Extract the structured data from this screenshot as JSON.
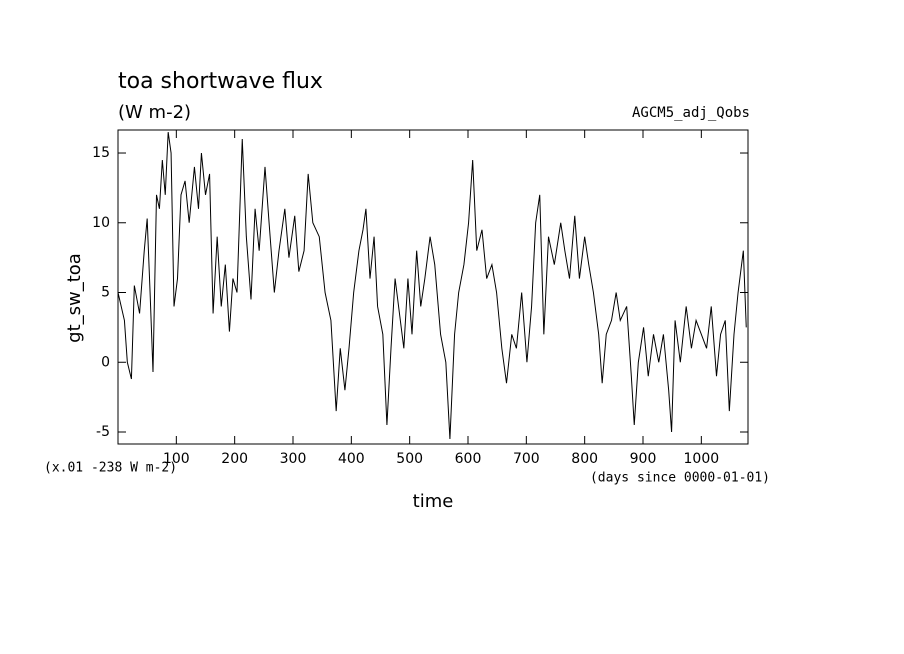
{
  "chart_data": {
    "type": "line",
    "title": "toa shortwave flux",
    "subtitle": "(W m-2)",
    "annotation": "AGCM5_adj_Qobs",
    "y_label": "gt_sw_toa",
    "x_label": "time",
    "x_unit": "(days since 0000-01-01)",
    "y_offset_note": "(x.01 -238 W m-2)",
    "x": [
      0,
      11,
      16,
      23,
      28,
      37,
      45,
      50,
      55,
      60,
      66,
      71,
      76,
      81,
      86,
      91,
      96,
      102,
      108,
      115,
      122,
      131,
      138,
      143,
      150,
      157,
      163,
      170,
      177,
      184,
      191,
      197,
      204,
      213,
      220,
      228,
      235,
      242,
      252,
      259,
      268,
      276,
      286,
      293,
      303,
      310,
      319,
      326,
      334,
      345,
      355,
      365,
      374,
      381,
      389,
      396,
      404,
      413,
      420,
      425,
      432,
      439,
      445,
      454,
      461,
      468,
      475,
      481,
      490,
      497,
      504,
      512,
      519,
      526,
      535,
      543,
      553,
      562,
      569,
      577,
      584,
      593,
      601,
      608,
      615,
      624,
      632,
      641,
      649,
      658,
      666,
      675,
      683,
      692,
      701,
      709,
      716,
      723,
      730,
      738,
      748,
      759,
      766,
      774,
      783,
      791,
      800,
      807,
      815,
      824,
      830,
      837,
      846,
      854,
      861,
      872,
      880,
      885,
      892,
      901,
      909,
      918,
      927,
      935,
      944,
      949,
      955,
      964,
      974,
      983,
      991,
      1000,
      1009,
      1017,
      1026,
      1033,
      1041,
      1048,
      1056,
      1063,
      1072,
      1077
    ],
    "values": [
      5,
      3,
      0,
      -1.2,
      5.5,
      3.5,
      8,
      10.3,
      5,
      -0.7,
      12,
      11,
      14.5,
      12,
      16.5,
      15,
      4,
      6,
      12,
      13,
      10,
      14,
      11,
      15,
      12,
      13.5,
      3.5,
      9,
      4,
      7,
      2.2,
      6,
      5,
      16,
      9,
      4.5,
      11,
      8,
      14,
      10,
      5,
      8,
      11,
      7.5,
      10.5,
      6.5,
      8,
      13.5,
      10,
      9,
      5,
      3,
      -3.5,
      1,
      -2,
      1,
      5,
      8,
      9.5,
      11,
      6,
      9,
      4,
      2,
      -4.5,
      1,
      6,
      4,
      1,
      6,
      2,
      8,
      4,
      6,
      9,
      7,
      2,
      0,
      -5.5,
      2,
      5,
      7,
      10,
      14.5,
      8,
      9.5,
      6,
      7,
      5,
      1,
      -1.5,
      2,
      1,
      5,
      0,
      4,
      10,
      12,
      2,
      9,
      7,
      10,
      8,
      6,
      10.5,
      6,
      9,
      7,
      5,
      2,
      -1.5,
      2,
      3,
      5,
      3,
      4,
      -1,
      -4.5,
      0,
      2.5,
      -1,
      2,
      0,
      2,
      -2,
      -5,
      3,
      0,
      4,
      1,
      3,
      2,
      1,
      4,
      -1,
      2,
      3,
      -3.5,
      2,
      5,
      8,
      2.5
    ],
    "color": "#000000",
    "xlim": [
      0,
      1080
    ],
    "ylim": [
      -5.86,
      16.65
    ],
    "xticks": [
      100,
      200,
      300,
      400,
      500,
      600,
      700,
      800,
      900,
      1000
    ],
    "yticks": [
      -5,
      0,
      5,
      10,
      15
    ]
  }
}
